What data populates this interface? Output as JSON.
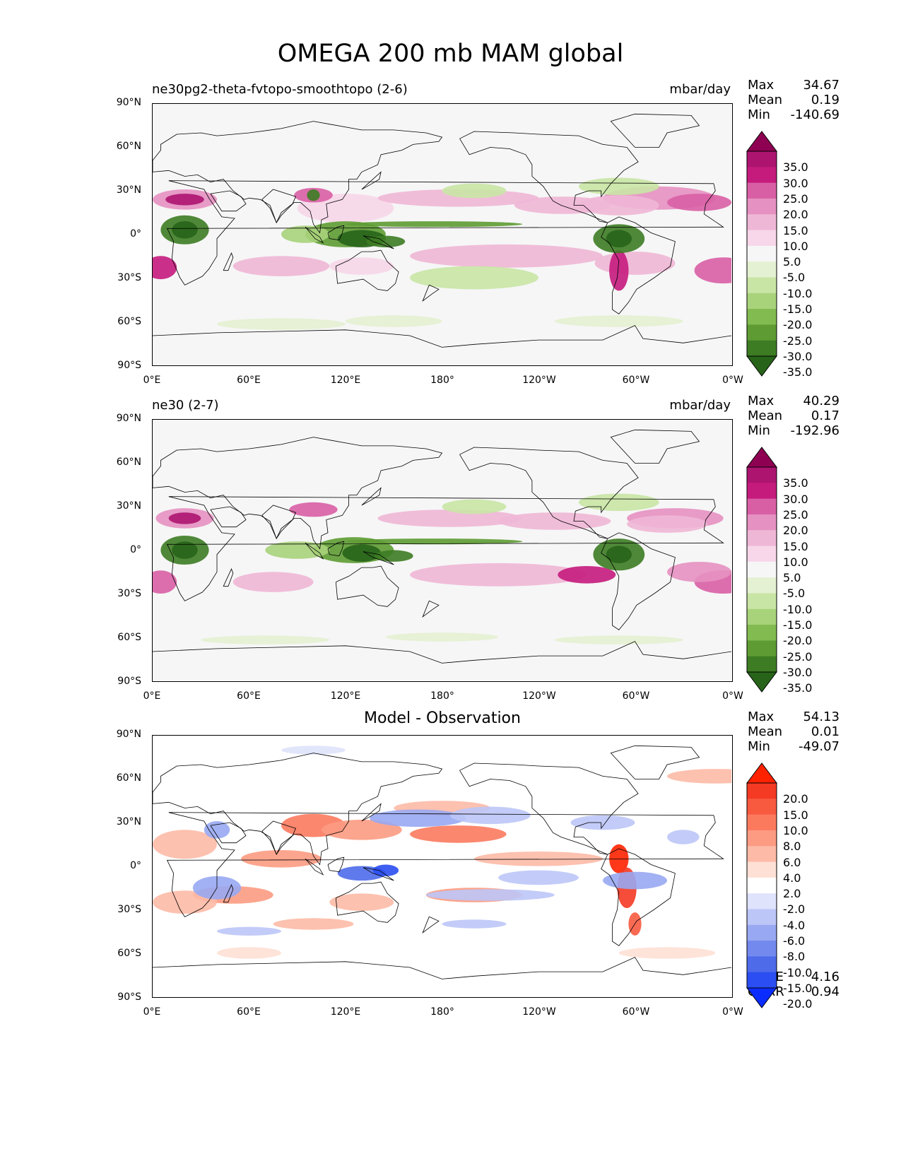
{
  "title": "OMEGA 200 mb MAM global",
  "axes": {
    "y_labels": [
      "90°N",
      "60°N",
      "30°N",
      "0°",
      "30°S",
      "60°S",
      "90°S"
    ],
    "x_labels": [
      "0°E",
      "60°E",
      "120°E",
      "180°",
      "120°W",
      "60°W",
      "0°W"
    ]
  },
  "chart_data": [
    {
      "type": "heatmap",
      "title": "ne30pg2-theta-fvtopo-smoothtopo (2-6)",
      "units": "mbar/day",
      "stats": [
        {
          "label": "Max",
          "value": "34.67"
        },
        {
          "label": "Mean",
          "value": "0.19"
        },
        {
          "label": "Min",
          "value": "-140.69"
        }
      ],
      "colorbar": {
        "labels": [
          "35.0",
          "30.0",
          "25.0",
          "20.0",
          "15.0",
          "10.0",
          "5.0",
          "-5.0",
          "-10.0",
          "-15.0",
          "-20.0",
          "-25.0",
          "-30.0",
          "-35.0"
        ],
        "colors": [
          "#8e0152",
          "#ad1470",
          "#c51b7d",
          "#d95fa5",
          "#e591c1",
          "#efb7d6",
          "#f7d7e9",
          "#f6f6f6",
          "#e4f1d2",
          "#c9e5a5",
          "#a8d37b",
          "#82bb50",
          "#5e9c33",
          "#3d7c23",
          "#276419"
        ],
        "extend": "both"
      }
    },
    {
      "type": "heatmap",
      "title": "ne30 (2-7)",
      "units": "mbar/day",
      "stats": [
        {
          "label": "Max",
          "value": "40.29"
        },
        {
          "label": "Mean",
          "value": "0.17"
        },
        {
          "label": "Min",
          "value": "-192.96"
        }
      ],
      "colorbar": {
        "labels": [
          "35.0",
          "30.0",
          "25.0",
          "20.0",
          "15.0",
          "10.0",
          "5.0",
          "-5.0",
          "-10.0",
          "-15.0",
          "-20.0",
          "-25.0",
          "-30.0",
          "-35.0"
        ],
        "colors": [
          "#8e0152",
          "#ad1470",
          "#c51b7d",
          "#d95fa5",
          "#e591c1",
          "#efb7d6",
          "#f7d7e9",
          "#f6f6f6",
          "#e4f1d2",
          "#c9e5a5",
          "#a8d37b",
          "#82bb50",
          "#5e9c33",
          "#3d7c23",
          "#276419"
        ],
        "extend": "both"
      }
    },
    {
      "type": "heatmap",
      "title": "Model - Observation",
      "units": "",
      "stats": [
        {
          "label": "Max",
          "value": "54.13"
        },
        {
          "label": "Mean",
          "value": "0.01"
        },
        {
          "label": "Min",
          "value": "-49.07"
        }
      ],
      "extra_stats": [
        {
          "label": "RMSE",
          "value": "4.16"
        },
        {
          "label": "CORR",
          "value": "0.94"
        }
      ],
      "colorbar": {
        "labels": [
          "20.0",
          "15.0",
          "10.0",
          "8.0",
          "6.0",
          "4.0",
          "2.0",
          "-2.0",
          "-4.0",
          "-6.0",
          "-8.0",
          "-10.0",
          "-15.0",
          "-20.0"
        ],
        "colors": [
          "#ff2200",
          "#f43a23",
          "#f85a40",
          "#fb7a5e",
          "#fc9b82",
          "#fdbaa6",
          "#fee0d5",
          "#ffffff",
          "#dfe3fb",
          "#bcc6f7",
          "#98a8f2",
          "#7389ee",
          "#4e6bea",
          "#2a4ef1",
          "#0b2cff"
        ],
        "extend": "both"
      }
    }
  ]
}
